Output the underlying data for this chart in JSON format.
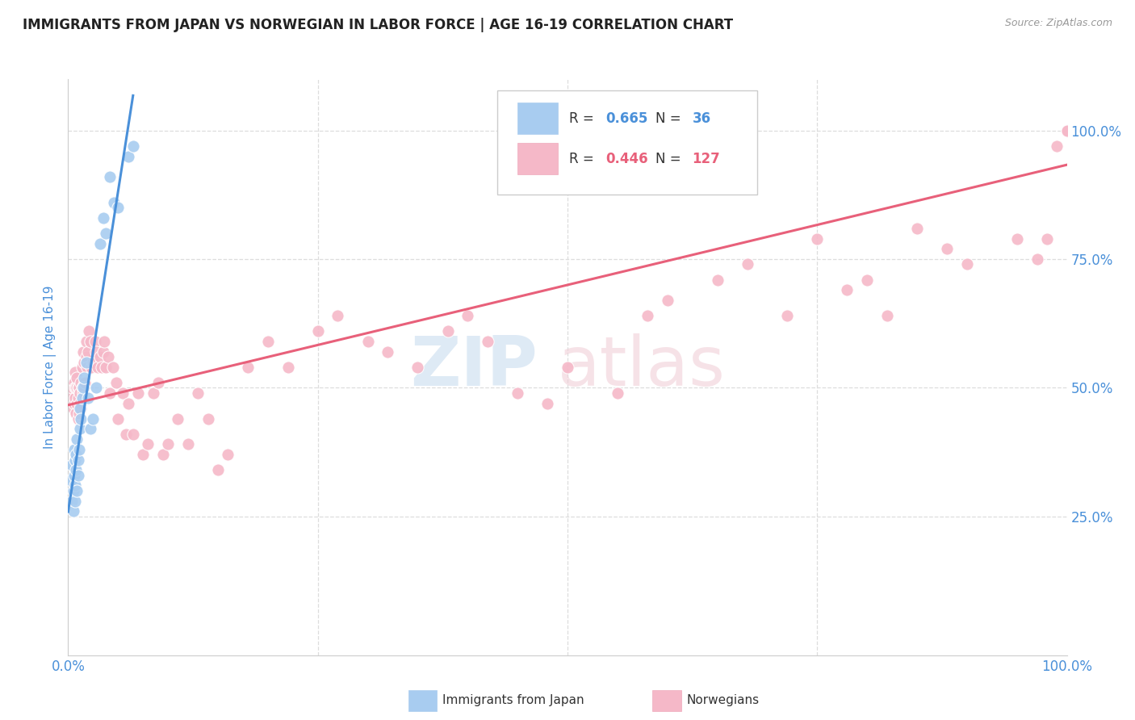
{
  "title": "IMMIGRANTS FROM JAPAN VS NORWEGIAN IN LABOR FORCE | AGE 16-19 CORRELATION CHART",
  "source": "Source: ZipAtlas.com",
  "ylabel": "In Labor Force | Age 16-19",
  "xlim": [
    0,
    1
  ],
  "ylim": [
    -0.02,
    1.1
  ],
  "legend_blue_r": "0.665",
  "legend_blue_n": "36",
  "legend_pink_r": "0.446",
  "legend_pink_n": "127",
  "blue_color": "#A8CCF0",
  "pink_color": "#F5B8C8",
  "blue_line_color": "#4A90D9",
  "pink_line_color": "#E8607A",
  "title_color": "#222222",
  "axis_label_color": "#4A90D9",
  "background_color": "#FFFFFF",
  "grid_color": "#DDDDDD",
  "japan_x": [
    0.003,
    0.004,
    0.004,
    0.005,
    0.005,
    0.006,
    0.006,
    0.007,
    0.007,
    0.007,
    0.008,
    0.008,
    0.009,
    0.009,
    0.01,
    0.01,
    0.011,
    0.012,
    0.012,
    0.013,
    0.014,
    0.015,
    0.016,
    0.018,
    0.02,
    0.022,
    0.025,
    0.028,
    0.032,
    0.035,
    0.038,
    0.042,
    0.046,
    0.05,
    0.06,
    0.065
  ],
  "japan_y": [
    0.32,
    0.35,
    0.28,
    0.3,
    0.26,
    0.33,
    0.38,
    0.36,
    0.31,
    0.28,
    0.34,
    0.37,
    0.3,
    0.4,
    0.33,
    0.36,
    0.38,
    0.42,
    0.46,
    0.44,
    0.48,
    0.5,
    0.52,
    0.55,
    0.48,
    0.42,
    0.44,
    0.5,
    0.78,
    0.83,
    0.8,
    0.91,
    0.86,
    0.85,
    0.95,
    0.97
  ],
  "norw_x": [
    0.003,
    0.004,
    0.005,
    0.006,
    0.006,
    0.007,
    0.007,
    0.007,
    0.008,
    0.008,
    0.009,
    0.009,
    0.009,
    0.01,
    0.01,
    0.01,
    0.011,
    0.011,
    0.012,
    0.012,
    0.013,
    0.013,
    0.014,
    0.014,
    0.015,
    0.015,
    0.016,
    0.016,
    0.017,
    0.018,
    0.018,
    0.019,
    0.02,
    0.021,
    0.022,
    0.023,
    0.025,
    0.027,
    0.028,
    0.03,
    0.032,
    0.034,
    0.035,
    0.036,
    0.038,
    0.04,
    0.042,
    0.045,
    0.048,
    0.05,
    0.055,
    0.058,
    0.06,
    0.065,
    0.07,
    0.075,
    0.08,
    0.085,
    0.09,
    0.095,
    0.1,
    0.11,
    0.12,
    0.13,
    0.14,
    0.15,
    0.16,
    0.18,
    0.2,
    0.22,
    0.25,
    0.27,
    0.3,
    0.32,
    0.35,
    0.38,
    0.4,
    0.42,
    0.45,
    0.48,
    0.5,
    0.55,
    0.58,
    0.6,
    0.65,
    0.68,
    0.72,
    0.75,
    0.78,
    0.8,
    0.82,
    0.85,
    0.88,
    0.9,
    0.95,
    0.97,
    0.98,
    0.99,
    1.0,
    1.0,
    1.0,
    1.0,
    1.0,
    1.0,
    1.0,
    1.0,
    1.0,
    1.0,
    1.0,
    1.0,
    1.0,
    1.0,
    1.0,
    1.0,
    1.0,
    1.0,
    1.0,
    1.0,
    1.0,
    1.0,
    1.0,
    1.0,
    1.0,
    1.0,
    1.0,
    1.0,
    1.0
  ],
  "norw_y": [
    0.48,
    0.5,
    0.46,
    0.47,
    0.51,
    0.48,
    0.5,
    0.53,
    0.45,
    0.5,
    0.47,
    0.5,
    0.52,
    0.44,
    0.48,
    0.5,
    0.45,
    0.5,
    0.47,
    0.49,
    0.46,
    0.51,
    0.5,
    0.54,
    0.49,
    0.57,
    0.55,
    0.5,
    0.51,
    0.59,
    0.56,
    0.54,
    0.57,
    0.61,
    0.59,
    0.54,
    0.55,
    0.59,
    0.57,
    0.54,
    0.56,
    0.54,
    0.57,
    0.59,
    0.54,
    0.56,
    0.49,
    0.54,
    0.51,
    0.44,
    0.49,
    0.41,
    0.47,
    0.41,
    0.49,
    0.37,
    0.39,
    0.49,
    0.51,
    0.37,
    0.39,
    0.44,
    0.39,
    0.49,
    0.44,
    0.34,
    0.37,
    0.54,
    0.59,
    0.54,
    0.61,
    0.64,
    0.59,
    0.57,
    0.54,
    0.61,
    0.64,
    0.59,
    0.49,
    0.47,
    0.54,
    0.49,
    0.64,
    0.67,
    0.71,
    0.74,
    0.64,
    0.79,
    0.69,
    0.71,
    0.64,
    0.81,
    0.77,
    0.74,
    0.79,
    0.75,
    0.79,
    0.97,
    1.0,
    1.0,
    1.0,
    1.0,
    1.0,
    1.0,
    1.0,
    1.0,
    1.0,
    1.0,
    1.0,
    1.0,
    1.0,
    1.0,
    1.0,
    1.0,
    1.0,
    1.0,
    1.0,
    1.0,
    1.0,
    1.0,
    1.0,
    1.0,
    1.0,
    1.0,
    1.0,
    1.0,
    1.0
  ]
}
